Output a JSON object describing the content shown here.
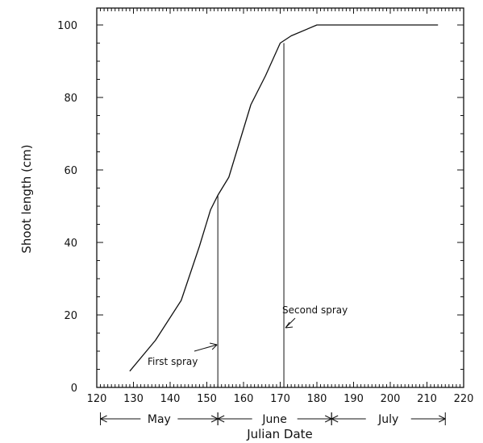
{
  "chart_data": {
    "type": "line",
    "xlabel": "Julian Date",
    "ylabel": "Shoot length (cm)",
    "xlim": [
      120,
      220
    ],
    "ylim": [
      0,
      105
    ],
    "x_ticks": [
      120,
      130,
      140,
      150,
      160,
      170,
      180,
      190,
      200,
      210,
      220
    ],
    "y_ticks": [
      0,
      20,
      40,
      60,
      80,
      100
    ],
    "grid": false,
    "series": [
      {
        "x": [
          129,
          136,
          143,
          148,
          151,
          153,
          156,
          162,
          166,
          170,
          173,
          180,
          190,
          200,
          213
        ],
        "y": [
          4.5,
          13,
          24,
          39,
          49,
          53,
          58,
          78,
          86,
          95,
          97,
          100,
          100,
          100,
          100
        ]
      }
    ],
    "annotations": [
      {
        "text": "First spray",
        "x": 153,
        "y": 53
      },
      {
        "text": "Second spray",
        "x": 171,
        "y": 95
      }
    ],
    "months": [
      {
        "label": "May",
        "start": 121,
        "end": 153
      },
      {
        "label": "June",
        "start": 153,
        "end": 184
      },
      {
        "label": "July",
        "start": 184,
        "end": 215
      }
    ]
  }
}
